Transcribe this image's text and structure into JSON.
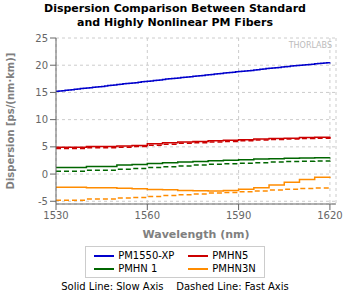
{
  "chart_data": {
    "type": "step",
    "title": "Dispersion Comparison Between Standard\nand Highly Nonlinear PM Fibers",
    "xlabel": "Wavelength (nm)",
    "ylabel": "Dispersion [ps/(nm·km)]",
    "xlim": [
      1530,
      1622
    ],
    "ylim": [
      -5.5,
      25
    ],
    "xticks": [
      1530,
      1560,
      1590,
      1620
    ],
    "yticks": [
      -5,
      0,
      5,
      10,
      15,
      20,
      25
    ],
    "grid": true,
    "legend": "bottom",
    "annotations": [
      "THORLABS",
      "Solid Line: Slow Axis    Dashed Line: Fast Axis"
    ],
    "series": [
      {
        "name": "PM1550-XP",
        "color": "#0000CC",
        "line_style": "solid",
        "x": [
          1530,
          1531,
          1532,
          1533,
          1534,
          1535,
          1536,
          1537,
          1538,
          1539,
          1540,
          1541,
          1542,
          1543,
          1544,
          1545,
          1546,
          1547,
          1548,
          1549,
          1550,
          1551,
          1552,
          1553,
          1554,
          1555,
          1556,
          1557,
          1558,
          1559,
          1560,
          1561,
          1562,
          1563,
          1564,
          1565,
          1566,
          1567,
          1568,
          1569,
          1570,
          1571,
          1572,
          1573,
          1574,
          1575,
          1576,
          1577,
          1578,
          1579,
          1580,
          1581,
          1582,
          1583,
          1584,
          1585,
          1586,
          1587,
          1588,
          1589,
          1590,
          1591,
          1592,
          1593,
          1594,
          1595,
          1596,
          1597,
          1598,
          1599,
          1600,
          1601,
          1602,
          1603,
          1604,
          1605,
          1606,
          1607,
          1608,
          1609,
          1610,
          1611,
          1612,
          1613,
          1614,
          1615,
          1616,
          1617,
          1618,
          1619,
          1620
        ],
        "values": [
          15.2,
          15.25,
          15.3,
          15.38,
          15.45,
          15.5,
          15.58,
          15.65,
          15.7,
          15.75,
          15.8,
          15.88,
          15.95,
          16.0,
          16.05,
          16.1,
          16.18,
          16.25,
          16.3,
          16.38,
          16.45,
          16.5,
          16.58,
          16.65,
          16.7,
          16.75,
          16.8,
          16.88,
          16.95,
          17.0,
          17.05,
          17.12,
          17.18,
          17.25,
          17.3,
          17.38,
          17.45,
          17.5,
          17.55,
          17.6,
          17.65,
          17.72,
          17.78,
          17.85,
          17.9,
          17.95,
          18.0,
          18.05,
          18.12,
          18.18,
          18.25,
          18.3,
          18.38,
          18.45,
          18.5,
          18.55,
          18.6,
          18.65,
          18.7,
          18.78,
          18.85,
          18.9,
          18.95,
          19.0,
          19.05,
          19.1,
          19.18,
          19.25,
          19.3,
          19.38,
          19.45,
          19.5,
          19.55,
          19.6,
          19.65,
          19.7,
          19.78,
          19.85,
          19.9,
          19.95,
          20.0,
          20.05,
          20.1,
          20.15,
          20.2,
          20.25,
          20.3,
          20.35,
          20.4,
          20.45,
          20.5
        ]
      },
      {
        "name": "PMHN5",
        "color": "#CC0000",
        "line_style": "solid",
        "x": [
          1530,
          1540,
          1550,
          1555,
          1560,
          1565,
          1570,
          1575,
          1580,
          1585,
          1590,
          1595,
          1600,
          1605,
          1610,
          1615,
          1620
        ],
        "values": [
          4.95,
          5.05,
          5.15,
          5.25,
          5.55,
          5.75,
          5.9,
          6.0,
          6.1,
          6.2,
          6.3,
          6.45,
          6.55,
          6.6,
          6.7,
          6.75,
          6.85
        ]
      },
      {
        "name": "PMHN5",
        "color": "#CC0000",
        "line_style": "dashed",
        "x": [
          1530,
          1540,
          1550,
          1555,
          1560,
          1565,
          1570,
          1575,
          1580,
          1585,
          1590,
          1595,
          1600,
          1605,
          1610,
          1615,
          1620
        ],
        "values": [
          4.7,
          4.85,
          4.95,
          5.05,
          5.3,
          5.5,
          5.65,
          5.75,
          5.9,
          6.0,
          6.1,
          6.25,
          6.35,
          6.45,
          6.55,
          6.6,
          6.7
        ]
      },
      {
        "name": "PMHN 1",
        "color": "#006600",
        "line_style": "solid",
        "x": [
          1530,
          1540,
          1550,
          1555,
          1560,
          1565,
          1570,
          1575,
          1580,
          1585,
          1590,
          1595,
          1600,
          1605,
          1610,
          1615,
          1620
        ],
        "values": [
          1.2,
          1.4,
          1.65,
          1.75,
          1.95,
          2.1,
          2.2,
          2.3,
          2.45,
          2.55,
          2.65,
          2.75,
          2.82,
          2.9,
          2.95,
          3.0,
          3.05
        ]
      },
      {
        "name": "PMHN 1",
        "color": "#006600",
        "line_style": "dashed",
        "x": [
          1530,
          1540,
          1550,
          1555,
          1560,
          1565,
          1570,
          1575,
          1580,
          1585,
          1590,
          1595,
          1600,
          1605,
          1610,
          1615,
          1620
        ],
        "values": [
          0.5,
          0.7,
          0.9,
          1.0,
          1.2,
          1.35,
          1.5,
          1.65,
          1.8,
          1.9,
          2.0,
          2.1,
          2.2,
          2.3,
          2.35,
          2.4,
          2.45
        ]
      },
      {
        "name": "PMHN3N",
        "color": "#FF8C00",
        "line_style": "solid",
        "x": [
          1530,
          1540,
          1550,
          1555,
          1560,
          1565,
          1570,
          1575,
          1580,
          1585,
          1590,
          1595,
          1600,
          1605,
          1610,
          1615,
          1620
        ],
        "values": [
          -2.4,
          -2.5,
          -2.6,
          -2.7,
          -2.85,
          -2.9,
          -3.0,
          -3.05,
          -3.1,
          -3.0,
          -2.8,
          -2.5,
          -2.0,
          -1.5,
          -1.0,
          -0.6,
          -0.5
        ]
      },
      {
        "name": "PMHN3N",
        "color": "#FF8C00",
        "line_style": "dashed",
        "x": [
          1530,
          1540,
          1550,
          1555,
          1560,
          1565,
          1570,
          1575,
          1580,
          1585,
          1590,
          1595,
          1600,
          1605,
          1610,
          1615,
          1620
        ],
        "values": [
          -4.8,
          -4.6,
          -4.4,
          -4.3,
          -4.1,
          -3.95,
          -3.8,
          -3.65,
          -3.5,
          -3.4,
          -3.25,
          -3.1,
          -2.95,
          -2.8,
          -2.65,
          -2.55,
          -2.45
        ]
      }
    ]
  }
}
